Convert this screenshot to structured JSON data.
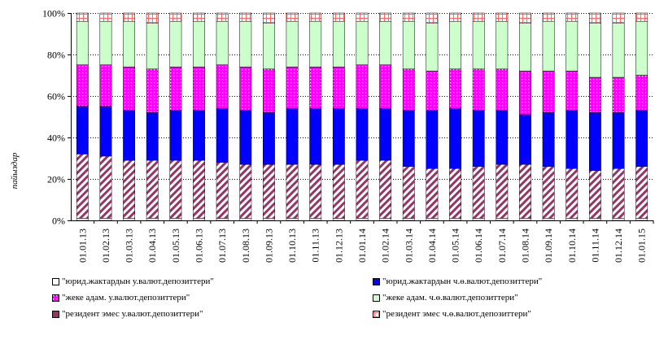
{
  "chart_data": {
    "type": "bar",
    "stacked": true,
    "percent": true,
    "ylabel": "пайыздар",
    "xlabel": "",
    "ylim": [
      0,
      100
    ],
    "yticks": [
      "0%",
      "20%",
      "40%",
      "60%",
      "80%",
      "100%"
    ],
    "categories": [
      "01.01.13",
      "01.02.13",
      "01.03.13",
      "01.04.13",
      "01.05.13",
      "01.06.13",
      "01.07.13",
      "01.08.13",
      "01.09.13",
      "01.10.13",
      "01.11.13",
      "01.12.13",
      "01.01.14",
      "01.02.14",
      "01.03.14",
      "01.04.14",
      "01.05.14",
      "01.06.14",
      "01.07.14",
      "01.08.14",
      "01.09.14",
      "01.10.14",
      "01.11.14",
      "01.12.14",
      "01.01.15"
    ],
    "series": [
      {
        "name": "\"юрид.жактардын у.валют.депозиттери\"",
        "color": "#ffffff",
        "values": [
          1,
          1,
          1,
          1,
          1,
          1,
          1,
          1,
          1,
          1,
          1,
          1,
          1,
          1,
          1,
          1,
          1,
          1,
          1,
          1,
          1,
          1,
          1,
          1,
          1
        ]
      },
      {
        "name": "\"резидент эмес у.валют.депозиттери\"",
        "color": "#993366",
        "values": [
          31,
          30,
          28,
          28,
          28,
          28,
          27,
          26,
          26,
          26,
          26,
          26,
          28,
          28,
          25,
          24,
          24,
          25,
          26,
          26,
          25,
          24,
          23,
          24,
          25
        ]
      },
      {
        "name": "\"юрид.жактардын ч.ө.валют.депозиттери\"",
        "color": "#0000ff",
        "values": [
          23,
          24,
          24,
          23,
          24,
          24,
          26,
          26,
          25,
          27,
          27,
          27,
          25,
          25,
          27,
          28,
          29,
          27,
          26,
          24,
          26,
          28,
          28,
          27,
          27
        ]
      },
      {
        "name": "\"жеке адам. у.валют.депозиттери\"",
        "color": "#ff00ff",
        "values": [
          20,
          20,
          21,
          21,
          21,
          21,
          21,
          21,
          21,
          20,
          20,
          20,
          21,
          21,
          20,
          19,
          19,
          20,
          20,
          21,
          20,
          19,
          17,
          17,
          17
        ]
      },
      {
        "name": "\"жеке адам. ч.ө.валют.депозиттери\"",
        "color": "#ccffcc",
        "values": [
          21,
          21,
          22,
          22,
          22,
          22,
          21,
          22,
          22,
          22,
          22,
          22,
          21,
          21,
          23,
          23,
          23,
          23,
          23,
          23,
          24,
          24,
          26,
          26,
          26
        ]
      },
      {
        "name": "\"резидент эмес ч.ө.валют.депозиттери\"",
        "color": "#ff99cc",
        "values": [
          4,
          4,
          4,
          5,
          4,
          4,
          4,
          4,
          5,
          4,
          4,
          4,
          4,
          4,
          4,
          5,
          4,
          4,
          4,
          5,
          4,
          4,
          5,
          5,
          4
        ]
      }
    ],
    "legend": {
      "left": [
        "\"юрид.жактардын у.валют.депозиттери\"",
        "\"жеке адам. у.валют.депозиттери\"",
        "\"резидент эмес у.валют.депозиттери\""
      ],
      "right": [
        "\"юрид.жактардын ч.ө.валют.депозиттери\"",
        "\"жеке адам. ч.ө.валют.депозиттери\"",
        "\"резидент эмес ч.ө.валют.депозиттери\""
      ]
    },
    "grid": true,
    "legend_position": "bottom"
  }
}
